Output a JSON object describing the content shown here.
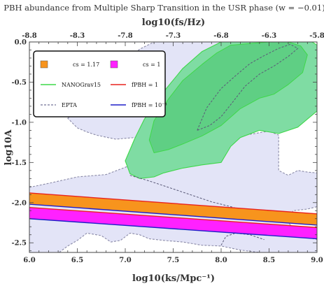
{
  "chart_data": {
    "type": "area",
    "title": "PBH abundance from Multiple Sharp Transition in the USR phase (w = −0.01)",
    "xlabel": "log10(ks/Mpc⁻¹)",
    "ylabel": "log10A",
    "x2label": "log10(fs/Hz)",
    "xlim": [
      6.0,
      9.0
    ],
    "ylim": [
      -2.62,
      0.0
    ],
    "x_ticks": [
      "6.0",
      "6.5",
      "7.0",
      "7.5",
      "8.0",
      "8.5",
      "9.0"
    ],
    "y_ticks": [
      "0.0",
      "-0.5",
      "-1.0",
      "-1.5",
      "-2.0",
      "-2.5"
    ],
    "x2_ticks": [
      "-8.8",
      "-8.3",
      "-7.8",
      "-7.3",
      "-6.8",
      "-6.3",
      "-5.8"
    ],
    "bands": [
      {
        "name": "cs = 1.17",
        "color": "#f7941d",
        "x": [
          6.0,
          9.0
        ],
        "upper": [
          -1.88,
          -2.14
        ],
        "lower": [
          -2.02,
          -2.28
        ]
      },
      {
        "name": "cs = 1",
        "color": "#ff21ff",
        "x": [
          6.0,
          9.0
        ],
        "upper": [
          -2.06,
          -2.31
        ],
        "lower": [
          -2.2,
          -2.45
        ]
      }
    ],
    "lines": [
      {
        "name": "fPBH = 1",
        "color": "#e8231e",
        "style": "solid",
        "x": [
          6.0,
          9.0
        ],
        "y": [
          [
            -1.88,
            -2.14
          ],
          [
            -2.06,
            -2.31
          ]
        ]
      },
      {
        "name": "fPBH = 10⁻³",
        "color": "#1f1fc8",
        "style": "solid",
        "x": [
          6.0,
          9.0
        ],
        "y": [
          [
            -2.02,
            -2.28
          ],
          [
            -2.2,
            -2.45
          ]
        ]
      }
    ],
    "contour_series": [
      {
        "name": "NANOGrav15",
        "line_color": "#3fd84a",
        "style": "solid"
      },
      {
        "name": "EPTA",
        "line_color": "#8a8aa8",
        "style": "dashed"
      }
    ],
    "regions": [
      {
        "series": "EPTA",
        "level": "outer",
        "fill": "#e3e4f7",
        "stroke": "#8a8aa8",
        "dashed": true,
        "closed": true,
        "x": [
          6.0,
          6.2,
          6.5,
          6.8,
          7.0,
          7.2,
          7.5,
          7.8,
          8.0,
          8.3,
          8.5,
          8.6,
          8.6,
          8.7,
          8.8,
          8.9,
          9.0,
          9.0,
          8.9,
          8.75,
          8.7,
          8.8,
          8.9,
          9.0,
          9.0,
          8.9,
          8.6,
          8.4,
          8.2,
          8.0,
          7.8,
          7.6,
          7.4,
          7.25,
          7.15,
          7.05,
          6.95,
          6.85,
          6.75,
          6.6,
          6.5,
          6.4,
          6.3,
          6.15,
          6.0
        ],
        "y": [
          -1.81,
          -1.76,
          -1.68,
          -1.65,
          -1.56,
          -1.48,
          -1.37,
          -1.29,
          -1.22,
          -1.15,
          -1.11,
          -1.16,
          -1.6,
          -1.66,
          -1.6,
          -1.62,
          -1.63,
          -2.05,
          -2.08,
          -2.1,
          -2.25,
          -2.37,
          -2.43,
          -2.46,
          -2.63,
          -2.63,
          -2.63,
          -2.62,
          -2.59,
          -2.54,
          -2.53,
          -2.49,
          -2.47,
          -2.45,
          -2.4,
          -2.38,
          -2.47,
          -2.49,
          -2.41,
          -2.38,
          -2.47,
          -2.54,
          -2.63,
          -2.63,
          -2.63
        ]
      },
      {
        "series": "EPTA",
        "level": "outer",
        "fill": "#e3e4f7",
        "stroke": "#8a8aa8",
        "dashed": true,
        "closed": true,
        "x": [
          6.4,
          6.5,
          6.65,
          6.8,
          6.95,
          7.05,
          7.15,
          7.3,
          7.5,
          7.7,
          7.9,
          8.1,
          8.3,
          8.5,
          8.65,
          8.8,
          8.9,
          9.0,
          9.0,
          8.85,
          8.7,
          8.6,
          8.5,
          8.4,
          8.3,
          8.25,
          8.1,
          7.9,
          7.7,
          7.5,
          7.3,
          7.1,
          6.9,
          6.7,
          6.6,
          6.5,
          6.4
        ],
        "y": [
          -0.95,
          -0.85,
          -0.63,
          -0.47,
          -0.32,
          -0.19,
          -0.09,
          0.0,
          0.0,
          0.0,
          0.0,
          0.0,
          0.0,
          0.0,
          0.0,
          0.0,
          -0.12,
          -0.18,
          -0.62,
          -0.57,
          -0.47,
          -0.44,
          -0.52,
          -0.68,
          -0.82,
          -0.88,
          -0.93,
          -0.99,
          -1.02,
          -1.08,
          -1.15,
          -1.19,
          -1.21,
          -1.16,
          -1.12,
          -1.07,
          -0.95
        ]
      },
      {
        "series": "NANOGrav15",
        "level": "outer",
        "fill": "#7fdca3",
        "stroke": "#3fd84a",
        "dashed": false,
        "closed": true,
        "x": [
          7.0,
          7.1,
          7.2,
          7.4,
          7.6,
          7.8,
          8.0,
          8.2,
          8.4,
          8.6,
          8.8,
          8.95,
          9.0,
          9.0,
          8.8,
          8.6,
          8.4,
          8.2,
          8.1,
          8.0,
          7.8,
          7.6,
          7.4,
          7.3,
          7.15,
          7.05,
          7.0
        ],
        "y": [
          -1.48,
          -1.2,
          -0.96,
          -0.62,
          -0.33,
          -0.12,
          0.0,
          0.0,
          0.0,
          0.0,
          0.0,
          0.0,
          -0.04,
          -0.86,
          -1.06,
          -1.14,
          -1.1,
          -1.19,
          -1.3,
          -1.5,
          -1.53,
          -1.57,
          -1.63,
          -1.68,
          -1.7,
          -1.64,
          -1.48
        ]
      },
      {
        "series": "NANOGrav15",
        "level": "inner",
        "fill": "#5fcf84",
        "stroke": "#3fd84a",
        "dashed": false,
        "closed": true,
        "x": [
          7.25,
          7.3,
          7.45,
          7.6,
          7.8,
          7.95,
          8.1,
          8.3,
          8.5,
          8.7,
          8.83,
          8.9,
          8.85,
          8.7,
          8.55,
          8.4,
          8.2,
          8.0,
          7.8,
          7.6,
          7.45,
          7.3,
          7.25
        ],
        "y": [
          -1.22,
          -0.98,
          -0.71,
          -0.48,
          -0.28,
          -0.14,
          -0.04,
          -0.02,
          0.0,
          0.0,
          -0.05,
          -0.16,
          -0.38,
          -0.53,
          -0.65,
          -0.7,
          -0.83,
          -1.04,
          -1.17,
          -1.27,
          -1.34,
          -1.38,
          -1.22
        ]
      },
      {
        "series": "EPTA",
        "level": "inner",
        "fill": "none",
        "stroke": "#5a5a78",
        "dashed": true,
        "closed": true,
        "x": [
          7.75,
          7.85,
          8.0,
          8.15,
          8.3,
          8.45,
          8.6,
          8.72,
          8.8,
          8.7,
          8.55,
          8.4,
          8.25,
          8.1,
          8.0,
          7.88,
          7.75
        ],
        "y": [
          -1.1,
          -0.82,
          -0.58,
          -0.42,
          -0.27,
          -0.17,
          -0.08,
          -0.03,
          -0.08,
          -0.18,
          -0.3,
          -0.4,
          -0.55,
          -0.78,
          -0.93,
          -1.04,
          -1.1
        ]
      },
      {
        "series": "EPTA",
        "level": "inner",
        "fill": "none",
        "stroke": "#5a5a78",
        "dashed": true,
        "closed": false,
        "x": [
          7.05,
          7.25,
          7.45,
          7.7,
          7.9,
          8.1,
          8.3
        ],
        "y": [
          -1.66,
          -1.73,
          -1.81,
          -1.91,
          -1.99,
          -2.05,
          -2.12
        ]
      },
      {
        "series": "EPTA",
        "level": "inner",
        "fill": "none",
        "stroke": "#5a5a78",
        "dashed": true,
        "closed": false,
        "x": [
          8.0,
          8.05,
          8.15,
          8.3,
          8.45
        ],
        "y": [
          -2.53,
          -2.42,
          -2.38,
          -2.4,
          -2.46
        ]
      }
    ],
    "legend": {
      "placement": "top-left",
      "entries": [
        {
          "label": "cs = 1.17",
          "swatch": "box",
          "color": "#f7941d"
        },
        {
          "label": "cs = 1",
          "swatch": "box",
          "color": "#ff21ff"
        },
        {
          "label": "NANOGrav15",
          "swatch": "line",
          "color": "#3fd84a",
          "style": "solid"
        },
        {
          "label": "fPBH = 1",
          "swatch": "line",
          "color": "#e8231e",
          "style": "solid"
        },
        {
          "label": "EPTA",
          "swatch": "line",
          "color": "#8a8aa8",
          "style": "dashed"
        },
        {
          "label": "fPBH = 10⁻³",
          "swatch": "line",
          "color": "#1f1fc8",
          "style": "solid"
        }
      ]
    },
    "grid": false
  }
}
